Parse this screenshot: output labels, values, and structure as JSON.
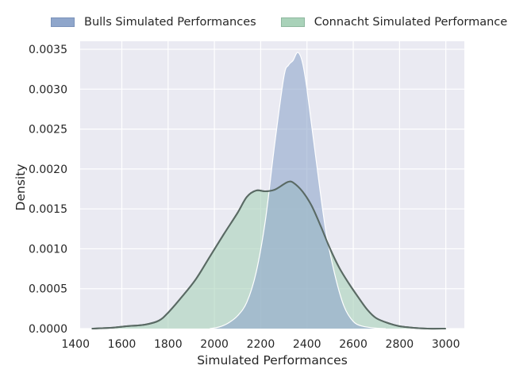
{
  "chart_data": {
    "type": "area",
    "title": "",
    "xlabel": "Simulated Performances",
    "ylabel": "Density",
    "xlim": [
      1420,
      3080
    ],
    "ylim": [
      0,
      0.0036
    ],
    "grid": true,
    "legend_position": "top",
    "x_ticks": [
      "1400",
      "1600",
      "1800",
      "2000",
      "2200",
      "2400",
      "2600",
      "2800",
      "3000"
    ],
    "y_ticks": [
      "0.0000",
      "0.0005",
      "0.0010",
      "0.0015",
      "0.0020",
      "0.0025",
      "0.0030",
      "0.0035"
    ],
    "colors": {
      "plot_bg": "#eaeaf2",
      "grid": "#ffffff",
      "bulls": "#8fa6cb",
      "connacht": "#a9d2b9",
      "connacht_line": "#5a6a64"
    },
    "series": [
      {
        "name": "Bulls Simulated Performances",
        "x": [
          1980,
          2020,
          2060,
          2100,
          2140,
          2180,
          2220,
          2260,
          2300,
          2320,
          2340,
          2360,
          2380,
          2400,
          2440,
          2480,
          2520,
          2560,
          2600,
          2640,
          2700,
          2740
        ],
        "values": [
          0,
          2e-05,
          7e-05,
          0.00016,
          0.00033,
          0.0007,
          0.00135,
          0.0023,
          0.00315,
          0.0033,
          0.00336,
          0.00346,
          0.00334,
          0.003,
          0.0021,
          0.00125,
          0.00068,
          0.00028,
          9e-05,
          3e-05,
          5e-06,
          0
        ]
      },
      {
        "name": "Connacht Simulated Performances",
        "x": [
          1470,
          1550,
          1620,
          1700,
          1760,
          1800,
          1860,
          1920,
          1980,
          2040,
          2100,
          2140,
          2180,
          2220,
          2260,
          2300,
          2320,
          2340,
          2380,
          2420,
          2460,
          2500,
          2540,
          2580,
          2620,
          2660,
          2700,
          2760,
          2800,
          2860,
          2920,
          3000
        ],
        "values": [
          0,
          1e-05,
          3e-05,
          5e-05,
          0.0001,
          0.0002,
          0.0004,
          0.00062,
          0.0009,
          0.00118,
          0.00145,
          0.00165,
          0.00173,
          0.00172,
          0.00174,
          0.00181,
          0.00184,
          0.00183,
          0.00172,
          0.00154,
          0.00128,
          0.001,
          0.00076,
          0.00057,
          0.0004,
          0.00024,
          0.00013,
          6e-05,
          3e-05,
          1e-05,
          0,
          0
        ]
      }
    ]
  }
}
